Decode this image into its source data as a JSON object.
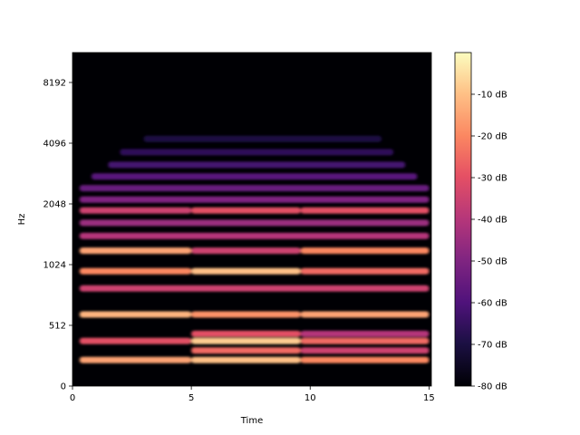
{
  "chart_data": {
    "type": "heatmap",
    "title": "",
    "xlabel": "Time",
    "ylabel": "Hz",
    "xlim": [
      0,
      15.1
    ],
    "x_ticks": [
      {
        "value": 0,
        "label": "0"
      },
      {
        "value": 5,
        "label": "5"
      },
      {
        "value": 10,
        "label": "10"
      },
      {
        "value": 15,
        "label": "15"
      }
    ],
    "y_scale": "log",
    "y_ticks": [
      {
        "value": 0,
        "label": "0"
      },
      {
        "value": 512,
        "label": "512"
      },
      {
        "value": 1024,
        "label": "1024"
      },
      {
        "value": 2048,
        "label": "2048"
      },
      {
        "value": 4096,
        "label": "4096"
      },
      {
        "value": 8192,
        "label": "8192"
      }
    ],
    "colorbar": {
      "range_db": [
        -80,
        0
      ],
      "ticks": [
        {
          "value": -10,
          "label": "-10 dB"
        },
        {
          "value": -20,
          "label": "-20 dB"
        },
        {
          "value": -30,
          "label": "-30 dB"
        },
        {
          "value": -40,
          "label": "-40 dB"
        },
        {
          "value": -50,
          "label": "-50 dB"
        },
        {
          "value": -60,
          "label": "-60 dB"
        },
        {
          "value": -70,
          "label": "-70 dB"
        },
        {
          "value": -80,
          "label": "-80 dB"
        }
      ],
      "colormap": "magma"
    },
    "background_db": -80,
    "harmonic_bands": [
      {
        "freq_hz": 220,
        "segments": [
          [
            0.3,
            5.0,
            -15
          ],
          [
            5.0,
            9.6,
            -10
          ],
          [
            9.6,
            15.0,
            -20
          ]
        ]
      },
      {
        "freq_hz": 300,
        "segments": [
          [
            5.0,
            9.6,
            -25
          ],
          [
            9.6,
            15.0,
            -35
          ]
        ]
      },
      {
        "freq_hz": 380,
        "segments": [
          [
            0.3,
            5.0,
            -30
          ],
          [
            5.0,
            9.6,
            -8
          ],
          [
            9.6,
            15.0,
            -25
          ]
        ]
      },
      {
        "freq_hz": 440,
        "segments": [
          [
            5.0,
            9.6,
            -30
          ],
          [
            9.6,
            15.0,
            -40
          ]
        ]
      },
      {
        "freq_hz": 580,
        "segments": [
          [
            0.3,
            5.0,
            -12
          ],
          [
            5.0,
            9.6,
            -18
          ],
          [
            9.6,
            15.0,
            -15
          ]
        ]
      },
      {
        "freq_hz": 780,
        "segments": [
          [
            0.3,
            15.0,
            -35
          ]
        ]
      },
      {
        "freq_hz": 950,
        "segments": [
          [
            0.3,
            5.0,
            -20
          ],
          [
            5.0,
            9.6,
            -10
          ],
          [
            9.6,
            15.0,
            -25
          ]
        ]
      },
      {
        "freq_hz": 1200,
        "segments": [
          [
            0.3,
            5.0,
            -15
          ],
          [
            5.0,
            9.6,
            -35
          ],
          [
            9.6,
            15.0,
            -20
          ]
        ]
      },
      {
        "freq_hz": 1420,
        "segments": [
          [
            0.3,
            15.0,
            -40
          ]
        ]
      },
      {
        "freq_hz": 1650,
        "segments": [
          [
            0.3,
            15.0,
            -45
          ]
        ]
      },
      {
        "freq_hz": 1900,
        "segments": [
          [
            0.3,
            5.0,
            -35
          ],
          [
            5.0,
            9.6,
            -30
          ],
          [
            9.6,
            15.0,
            -30
          ]
        ]
      },
      {
        "freq_hz": 2150,
        "segments": [
          [
            0.3,
            15.0,
            -50
          ]
        ]
      },
      {
        "freq_hz": 2450,
        "segments": [
          [
            0.3,
            15.0,
            -55
          ]
        ]
      },
      {
        "freq_hz": 2800,
        "segments": [
          [
            0.8,
            14.5,
            -58
          ]
        ]
      },
      {
        "freq_hz": 3200,
        "segments": [
          [
            1.5,
            14.0,
            -62
          ]
        ]
      },
      {
        "freq_hz": 3700,
        "segments": [
          [
            2.0,
            13.5,
            -66
          ]
        ]
      },
      {
        "freq_hz": 4300,
        "segments": [
          [
            3.0,
            13.0,
            -70
          ]
        ]
      }
    ]
  }
}
